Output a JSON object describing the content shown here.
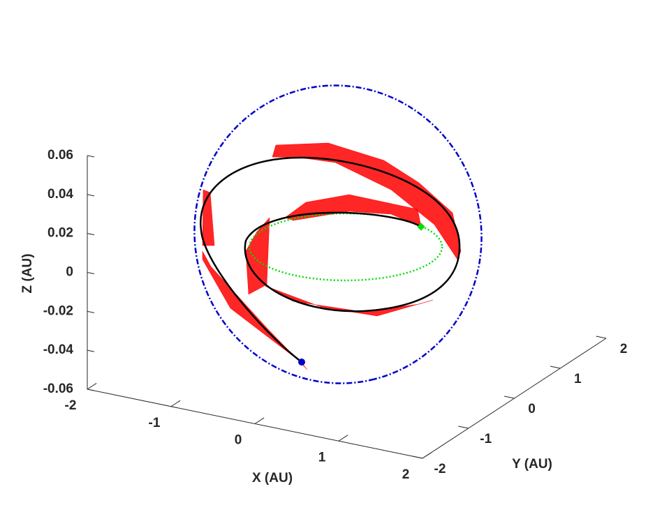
{
  "chart_data": {
    "type": "line3d",
    "xlabel": "X (AU)",
    "ylabel": "Y (AU)",
    "zlabel": "Z (AU)",
    "xlim": [
      -2,
      2
    ],
    "ylim": [
      -2,
      2
    ],
    "zlim": [
      -0.06,
      0.06
    ],
    "xticks": [
      -2,
      -1,
      0,
      1,
      2
    ],
    "yticks": [
      -2,
      -1,
      0,
      1,
      2
    ],
    "zticks": [
      -0.06,
      -0.04,
      -0.02,
      0,
      0.02,
      0.04,
      0.06
    ]
  }
}
